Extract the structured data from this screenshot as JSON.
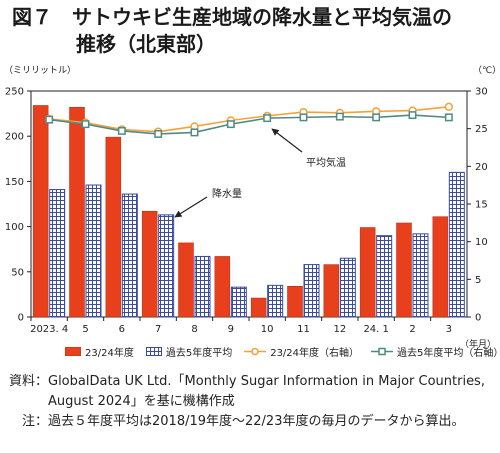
{
  "figure": {
    "title_line1": "図７　サトウキビ生産地域の降水量と平均気温の",
    "title_line2": "推移（北東部）"
  },
  "chart_data": {
    "type": "bar+line",
    "categories": [
      "2023. 4",
      "5",
      "6",
      "7",
      "8",
      "9",
      "10",
      "11",
      "12",
      "24. 1",
      "2",
      "3"
    ],
    "x_unit": "（年月）",
    "y_left_unit": "（ミリリットル）",
    "y_right_unit": "（℃）",
    "y_left_range": [
      0,
      250
    ],
    "y_left_ticks": [
      "0",
      "50",
      "100",
      "150",
      "200",
      "250"
    ],
    "y_right_range": [
      0,
      30
    ],
    "y_right_ticks": [
      "0",
      "5",
      "10",
      "15",
      "20",
      "25",
      "30"
    ],
    "grid": false,
    "series": [
      {
        "name": "23/24年度",
        "kind": "bar",
        "axis": "left",
        "values": [
          234,
          232,
          199,
          117,
          82,
          67,
          21,
          34,
          58,
          99,
          104,
          111
        ]
      },
      {
        "name": "過去5年度平均",
        "kind": "bar",
        "axis": "left",
        "values": [
          141,
          146,
          136,
          113,
          67,
          33,
          35,
          58,
          65,
          90,
          92,
          160
        ]
      },
      {
        "name": "23/24年度（右軸）",
        "kind": "line",
        "axis": "right",
        "values": [
          26.3,
          25.8,
          24.9,
          24.6,
          25.3,
          26.1,
          26.7,
          27.2,
          27.1,
          27.3,
          27.4,
          27.9
        ]
      },
      {
        "name": "過去5年度平均（右軸）",
        "kind": "line",
        "axis": "right",
        "values": [
          26.2,
          25.6,
          24.7,
          24.3,
          24.5,
          25.6,
          26.4,
          26.5,
          26.6,
          26.5,
          26.8,
          26.5
        ]
      }
    ],
    "annotations": [
      "平均気温",
      "降水量"
    ],
    "colors": {
      "bar_current": "#e8401c",
      "bar_avg_fill": "#ffffff",
      "bar_avg_pattern": "#3a4ba0",
      "line_current": "#f3a23a",
      "line_avg": "#4f8a86"
    }
  },
  "notes": [
    {
      "label": "資料：",
      "text": "GlobalData UK Ltd.「Monthly Sugar Information in Major Countries, August 2024」を基に機構作成"
    },
    {
      "label": "注：",
      "text": "過去５年度平均は2018/19年度～22/23年度の毎月のデータから算出。"
    }
  ]
}
